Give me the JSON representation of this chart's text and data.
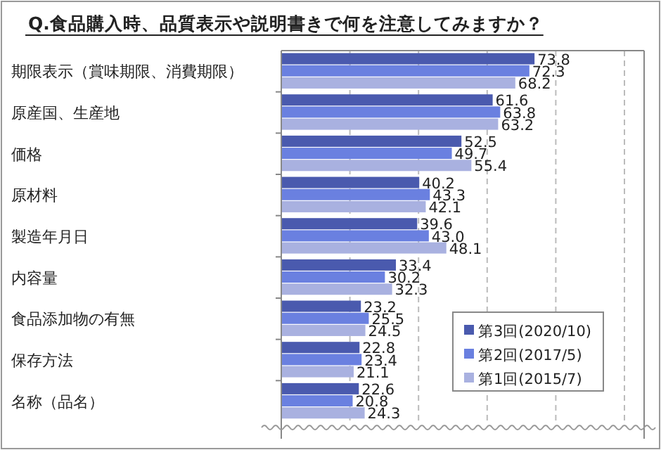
{
  "chart_data": {
    "type": "bar",
    "orientation": "horizontal",
    "title": "Q.食品購入時、品質表示や説明書きで何を注意してみますか？",
    "categories": [
      "期限表示（賞味期限、消費期限）",
      "原産国、生産地",
      "価格",
      "原材料",
      "製造年月日",
      "内容量",
      "食品添加物の有無",
      "保存方法",
      "名称（品名）"
    ],
    "series": [
      {
        "name": "第3回(2020/10)",
        "color": "#4a5aae",
        "values": [
          73.8,
          61.6,
          52.5,
          40.2,
          39.6,
          33.4,
          23.2,
          22.8,
          22.6
        ],
        "value_labels": [
          "73.8",
          "61.6",
          "52.5",
          "40.2",
          "39.6",
          "33.4",
          "23.2",
          "22.8",
          "22.6"
        ]
      },
      {
        "name": "第2回(2017/5)",
        "color": "#6a80e0",
        "values": [
          72.3,
          63.8,
          49.7,
          43.3,
          43.0,
          30.2,
          25.5,
          23.4,
          20.8
        ],
        "value_labels": [
          "72.3",
          "63.8",
          "49.7",
          "43.3",
          "43.0",
          "30.2",
          "25.5",
          "23.4",
          "20.8"
        ]
      },
      {
        "name": "第1回(2015/7)",
        "color": "#a9b1e0",
        "values": [
          68.2,
          63.2,
          55.4,
          42.1,
          48.1,
          32.3,
          24.5,
          21.1,
          24.3
        ],
        "value_labels": [
          "68.2",
          "63.2",
          "55.4",
          "42.1",
          "48.1",
          "32.3",
          "24.5",
          "21.1",
          "24.3"
        ]
      }
    ],
    "xlim": [
      0,
      100
    ],
    "xticks": [
      {
        "value": 0,
        "label": null
      },
      {
        "value": 20,
        "label": null
      },
      {
        "value": 40,
        "label": null
      },
      {
        "value": 60,
        "label": null
      },
      {
        "value": 80,
        "label": null
      },
      {
        "value": 100,
        "label": null
      }
    ],
    "tick_labels": "y",
    "grid": "x",
    "legend": "bottom right"
  }
}
